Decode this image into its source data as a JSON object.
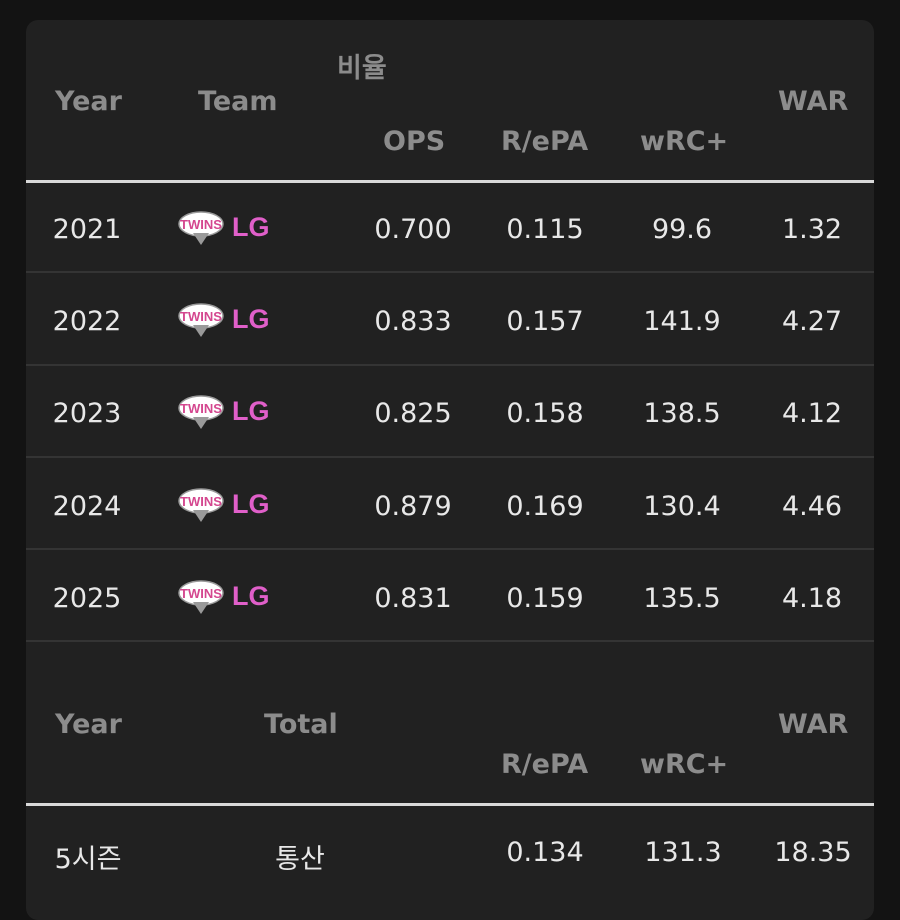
{
  "ratio_table": {
    "group_label": "비율",
    "headers": {
      "year": "Year",
      "team": "Team",
      "ops": "OPS",
      "repa": "R/ePA",
      "wrc": "wRC+",
      "war": "WAR"
    },
    "rows": [
      {
        "year": "2021",
        "team": "LG",
        "ops": "0.700",
        "repa": "0.115",
        "wrc": "99.6",
        "war": "1.32"
      },
      {
        "year": "2022",
        "team": "LG",
        "ops": "0.833",
        "repa": "0.157",
        "wrc": "141.9",
        "war": "4.27"
      },
      {
        "year": "2023",
        "team": "LG",
        "ops": "0.825",
        "repa": "0.158",
        "wrc": "138.5",
        "war": "4.12"
      },
      {
        "year": "2024",
        "team": "LG",
        "ops": "0.879",
        "repa": "0.169",
        "wrc": "130.4",
        "war": "4.46"
      },
      {
        "year": "2025",
        "team": "LG",
        "ops": "0.831",
        "repa": "0.159",
        "wrc": "135.5",
        "war": "4.18"
      }
    ],
    "logo_text": "TWINS",
    "logo_color": "#e05fc9"
  },
  "total_table": {
    "headers": {
      "year": "Year",
      "total": "Total",
      "repa": "R/ePA",
      "wrc": "wRC+",
      "war": "WAR"
    },
    "row": {
      "year": "5시즌",
      "total": "통산",
      "repa": "0.134",
      "wrc": "131.3",
      "war": "18.35"
    }
  }
}
